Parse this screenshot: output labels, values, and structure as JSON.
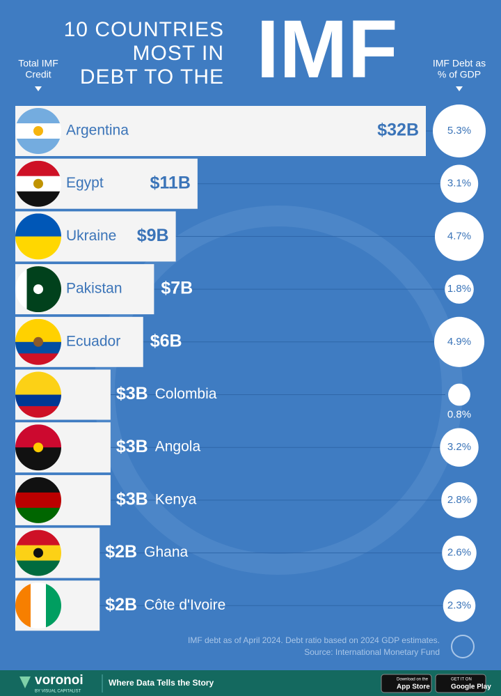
{
  "chart_data": {
    "type": "bar",
    "title": [
      "10 COUNTRIES",
      "MOST IN",
      "DEBT TO THE"
    ],
    "title_highlight": "IMF",
    "left_header": [
      "Total IMF",
      "Credit"
    ],
    "right_header": [
      "IMF Debt as",
      "% of GDP"
    ],
    "categories": [
      "Argentina",
      "Egypt",
      "Ukraine",
      "Pakistan",
      "Ecuador",
      "Colombia",
      "Angola",
      "Kenya",
      "Ghana",
      "Côte d'Ivoire"
    ],
    "series": [
      {
        "color": "#f4f4f4",
        "values": [
          32,
          11,
          9,
          7,
          6,
          3,
          3,
          3,
          2,
          2
        ],
        "value_labels": [
          "$32B",
          "$11B",
          "$9B",
          "$7B",
          "$6B",
          "$3B",
          "$3B",
          "$3B",
          "$2B",
          "$2B"
        ]
      },
      {
        "color": "#ffffff",
        "values": [
          5.3,
          3.1,
          4.7,
          1.8,
          4.9,
          0.8,
          3.2,
          2.8,
          2.6,
          2.3
        ],
        "value_labels": [
          "5.3%",
          "3.1%",
          "4.7%",
          "1.8%",
          "4.9%",
          "0.8%",
          "3.2%",
          "2.8%",
          "2.6%",
          "2.3%"
        ]
      }
    ],
    "notes": [
      "IMF debt as of April 2024. Debt ratio based on 2024 GDP estimates.",
      "Source: International Monetary Fund"
    ],
    "footer": {
      "brand": "voronoi",
      "brand_sub": "BY VISUAL CAPITALIST",
      "tagline": "Where Data Tells the Story",
      "app_store_small": "Download on the",
      "app_store": "App Store",
      "google_play_small": "GET IT ON",
      "google_play": "Google Play"
    }
  }
}
